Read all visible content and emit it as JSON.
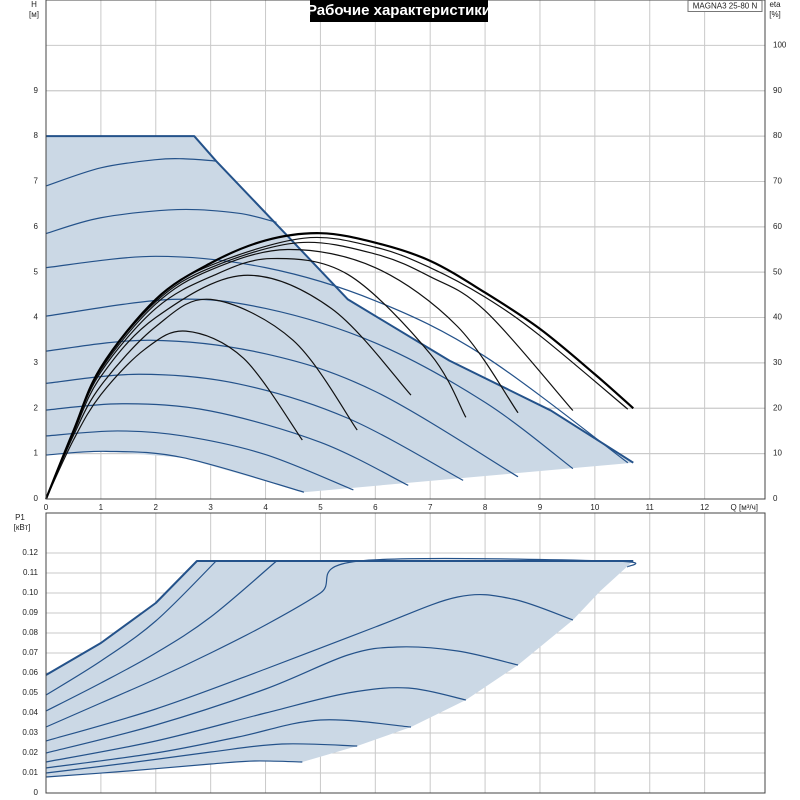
{
  "chart_data": [
    {
      "type": "line",
      "title": "Рабочие характеристики",
      "model": "MAGNA3 25-80 N",
      "xlabel": "Q [м³/ч]",
      "ylabel": "H",
      "yunit": "[м]",
      "y2label": "eta",
      "y2unit": "[%]",
      "xlim": [
        0,
        13.1
      ],
      "xticks": [
        0,
        1,
        2,
        3,
        4,
        5,
        6,
        7,
        8,
        9,
        10,
        11,
        12
      ],
      "ylim": [
        0,
        11
      ],
      "yticks": [
        0,
        1,
        2,
        3,
        4,
        5,
        6,
        7,
        8,
        9
      ],
      "y2lim": [
        0,
        110
      ],
      "y2ticks": [
        0,
        10,
        20,
        30,
        40,
        50,
        60,
        70,
        80,
        90,
        100
      ],
      "grid": true,
      "region": {
        "color": "#cbd8e5",
        "x": [
          0,
          2.7,
          3.1,
          4.4,
          5.5,
          7.35,
          9.2,
          10.7,
          4.7,
          2.5,
          1.1,
          0
        ],
        "values": [
          8,
          8,
          7.45,
          5.8,
          4.4,
          3.05,
          1.95,
          0.8,
          0.15,
          0.91,
          1.05,
          0.97
        ]
      },
      "series": [
        {
          "color": "#24528a",
          "width": 2,
          "smooth": false,
          "x": [
            0,
            2.7,
            3.1,
            4.4,
            5.5,
            7.35,
            9.2,
            10.7
          ],
          "values": [
            8,
            8,
            7.45,
            5.8,
            4.4,
            3.05,
            1.95,
            0.8
          ]
        },
        {
          "color": "#24528a",
          "width": 1.2,
          "smooth": true,
          "x": [
            0,
            1,
            2,
            2.5,
            3.1
          ],
          "values": [
            6.9,
            7.3,
            7.48,
            7.5,
            7.45
          ]
        },
        {
          "color": "#24528a",
          "width": 1.2,
          "smooth": true,
          "x": [
            0,
            1,
            2.4,
            3.5,
            4.2
          ],
          "values": [
            5.85,
            6.2,
            6.38,
            6.3,
            6.1
          ]
        },
        {
          "color": "#24528a",
          "width": 1.2,
          "smooth": true,
          "x": [
            0,
            2,
            4,
            6,
            8,
            10.6
          ],
          "values": [
            5.1,
            5.35,
            5.1,
            4.37,
            3.14,
            0.8
          ]
        },
        {
          "color": "#24528a",
          "width": 1.2,
          "smooth": true,
          "x": [
            0,
            2.3,
            4,
            6,
            8,
            9.6
          ],
          "values": [
            4.03,
            4.4,
            4.2,
            3.44,
            2.13,
            0.67
          ]
        },
        {
          "color": "#24528a",
          "width": 1.2,
          "smooth": true,
          "x": [
            0,
            1.9,
            4,
            6,
            8.6
          ],
          "values": [
            3.26,
            3.5,
            3.2,
            2.37,
            0.49
          ]
        },
        {
          "color": "#24528a",
          "width": 1.2,
          "smooth": true,
          "x": [
            0,
            1.7,
            3.5,
            5.5,
            7.6
          ],
          "values": [
            2.55,
            2.75,
            2.54,
            1.78,
            0.41
          ]
        },
        {
          "color": "#24528a",
          "width": 1.2,
          "smooth": true,
          "x": [
            0,
            1.4,
            3,
            5,
            6.6
          ],
          "values": [
            1.96,
            2.1,
            1.94,
            1.25,
            0.3
          ]
        },
        {
          "color": "#24528a",
          "width": 1.2,
          "smooth": true,
          "x": [
            0,
            1.3,
            2.5,
            4,
            5.6
          ],
          "values": [
            1.39,
            1.5,
            1.39,
            0.98,
            0.2
          ]
        },
        {
          "color": "#24528a",
          "width": 1.2,
          "smooth": true,
          "x": [
            0,
            1.1,
            2.5,
            4.7
          ],
          "values": [
            0.97,
            1.05,
            0.91,
            0.15
          ]
        },
        {
          "color": "#111111",
          "width": 1.2,
          "smooth": true,
          "axis": "y2",
          "x": [
            0,
            0.5,
            1,
            1.8,
            2.55,
            3.6,
            4.67
          ],
          "values": [
            0,
            13,
            23,
            33,
            37,
            31,
            13
          ]
        },
        {
          "color": "#111111",
          "width": 1.2,
          "smooth": true,
          "axis": "y2",
          "x": [
            0,
            0.5,
            1,
            2,
            3,
            4.5,
            5.67
          ],
          "values": [
            0,
            14,
            25,
            38,
            44,
            35,
            15.2
          ]
        },
        {
          "color": "#111111",
          "width": 1.2,
          "smooth": true,
          "axis": "y2",
          "x": [
            0,
            0.5,
            1,
            2,
            3.6,
            5.2,
            6.65
          ],
          "values": [
            0,
            14.5,
            27,
            40,
            49.3,
            42,
            22.9
          ]
        },
        {
          "color": "#111111",
          "width": 1.2,
          "smooth": true,
          "axis": "y2",
          "x": [
            0,
            0.5,
            1,
            2,
            3,
            4.1,
            5.5,
            7,
            7.65
          ],
          "values": [
            0,
            15,
            28,
            42,
            49,
            53,
            49.5,
            32,
            18
          ]
        },
        {
          "color": "#111111",
          "width": 1.2,
          "smooth": true,
          "axis": "y2",
          "x": [
            0,
            0.5,
            1,
            2,
            3,
            4.4,
            6,
            7.5,
            8.6
          ],
          "values": [
            0,
            15,
            28.5,
            43,
            50.5,
            55,
            51,
            38,
            19
          ]
        },
        {
          "color": "#111111",
          "width": 1.2,
          "smooth": true,
          "axis": "y2",
          "x": [
            0,
            0.5,
            1,
            2,
            3,
            4.6,
            6,
            7,
            8,
            9.6
          ],
          "values": [
            0,
            15,
            29,
            43.5,
            51,
            56.5,
            54,
            49,
            41.5,
            19.5
          ]
        },
        {
          "color": "#111111",
          "width": 1.2,
          "smooth": true,
          "axis": "y2",
          "x": [
            0,
            0.5,
            1,
            2,
            3,
            4.7,
            6,
            7,
            8,
            9,
            10.6
          ],
          "values": [
            0,
            15,
            29,
            44,
            51.5,
            57.5,
            55.5,
            51,
            44.5,
            36,
            19.8
          ]
        },
        {
          "color": "#000000",
          "width": 2.2,
          "smooth": true,
          "axis": "y2",
          "x": [
            0,
            0.5,
            1,
            2,
            3,
            4,
            5,
            6,
            7,
            8,
            9,
            10,
            10.7
          ],
          "values": [
            0,
            15,
            29,
            44,
            52,
            57,
            58.6,
            56.5,
            52.5,
            45.5,
            37.5,
            27.5,
            20
          ]
        }
      ]
    },
    {
      "type": "line",
      "ylabel": "P1",
      "yunit": "[кВт]",
      "xlim": [
        0,
        13.1
      ],
      "ylim": [
        0,
        0.14
      ],
      "yticks": [
        0,
        0.01,
        0.02,
        0.03,
        0.04,
        0.05,
        0.06,
        0.07,
        0.08,
        0.09,
        {
          "value": 0.1,
          "label": "0.10"
        },
        0.11,
        0.12
      ],
      "grid": true,
      "region": {
        "color": "#cbd8e5",
        "x": [
          0,
          1,
          2,
          2.75,
          10.7,
          10.1,
          9.6,
          8.6,
          7.65,
          6.65,
          5.67,
          4.67,
          3.8,
          3,
          1.5,
          0
        ],
        "values": [
          0.059,
          0.075,
          0.095,
          0.116,
          0.116,
          0.101,
          0.0865,
          0.064,
          0.0465,
          0.033,
          0.0235,
          0.0155,
          0.016,
          0.0145,
          0.011,
          0.008
        ]
      },
      "series": [
        {
          "color": "#24528a",
          "width": 2,
          "smooth": false,
          "x": [
            0,
            1,
            2,
            2.75,
            10.7
          ],
          "values": [
            0.059,
            0.075,
            0.095,
            0.116,
            0.116
          ]
        },
        {
          "color": "#24528a",
          "width": 1.2,
          "smooth": true,
          "x": [
            0,
            1,
            2,
            3.1
          ],
          "values": [
            0.049,
            0.066,
            0.086,
            0.116
          ]
        },
        {
          "color": "#24528a",
          "width": 1.2,
          "smooth": true,
          "x": [
            0,
            1,
            2,
            3,
            4.2
          ],
          "values": [
            0.041,
            0.055,
            0.07,
            0.088,
            0.116
          ]
        },
        {
          "color": "#24528a",
          "width": 1.2,
          "smooth": true,
          "x": [
            0,
            1,
            2,
            3,
            4,
            5,
            5.7,
            10.3,
            10.6
          ],
          "values": [
            0.033,
            0.045,
            0.057,
            0.07,
            0.084,
            0.1,
            0.116,
            0.116,
            0.113
          ]
        },
        {
          "color": "#24528a",
          "width": 1.2,
          "smooth": true,
          "x": [
            0,
            2,
            4,
            6,
            7.5,
            8.5,
            9.6
          ],
          "values": [
            0.026,
            0.042,
            0.062,
            0.083,
            0.098,
            0.097,
            0.0865
          ]
        },
        {
          "color": "#24528a",
          "width": 1.2,
          "smooth": true,
          "x": [
            0,
            2,
            4,
            5.5,
            6.4,
            7.5,
            8.6
          ],
          "values": [
            0.02,
            0.034,
            0.052,
            0.069,
            0.073,
            0.071,
            0.064
          ]
        },
        {
          "color": "#24528a",
          "width": 1.2,
          "smooth": true,
          "x": [
            0,
            2,
            4,
            5.5,
            6.6,
            7.65
          ],
          "values": [
            0.0155,
            0.026,
            0.04,
            0.05,
            0.0525,
            0.0465
          ]
        },
        {
          "color": "#24528a",
          "width": 1.2,
          "smooth": true,
          "x": [
            0,
            2,
            3.5,
            5,
            6.65
          ],
          "values": [
            0.0125,
            0.02,
            0.028,
            0.0365,
            0.033
          ]
        },
        {
          "color": "#24528a",
          "width": 1.2,
          "smooth": true,
          "x": [
            0,
            1.5,
            3,
            4.3,
            5.67
          ],
          "values": [
            0.01,
            0.015,
            0.0205,
            0.0245,
            0.0235
          ]
        },
        {
          "color": "#24528a",
          "width": 1.2,
          "smooth": true,
          "x": [
            0,
            1.5,
            3,
            3.8,
            4.67
          ],
          "values": [
            0.008,
            0.011,
            0.0145,
            0.016,
            0.0155
          ]
        }
      ]
    }
  ]
}
